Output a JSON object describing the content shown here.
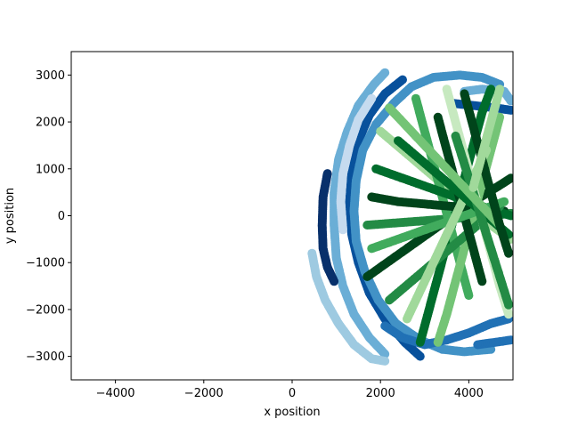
{
  "chart_data": {
    "type": "scatter",
    "title": "",
    "xlabel": "x position",
    "ylabel": "y position",
    "xlim": [
      -5000,
      5000
    ],
    "ylim": [
      -3500,
      3500
    ],
    "xticks": [
      -4000,
      -2000,
      0,
      2000,
      4000
    ],
    "yticks": [
      -3000,
      -2000,
      -1000,
      0,
      1000,
      2000,
      3000
    ],
    "grid": false,
    "legend": "none",
    "marker": "filled circle",
    "colormaps": [
      "Blues",
      "Greens"
    ],
    "series": [
      {
        "colormap": "Blues",
        "tracks": [
          {
            "color": "#6baed6",
            "points": [
              [
                2100,
                3050
              ],
              [
                1850,
                2800
              ],
              [
                1500,
                2350
              ],
              [
                1250,
                1800
              ],
              [
                1050,
                1200
              ],
              [
                950,
                500
              ],
              [
                950,
                -200
              ],
              [
                1000,
                -900
              ],
              [
                1150,
                -1500
              ],
              [
                1400,
                -2100
              ],
              [
                1750,
                -2600
              ],
              [
                2100,
                -2950
              ]
            ]
          },
          {
            "color": "#08519c",
            "points": [
              [
                2500,
                2900
              ],
              [
                2100,
                2600
              ],
              [
                1750,
                2150
              ],
              [
                1500,
                1600
              ],
              [
                1350,
                950
              ],
              [
                1300,
                300
              ],
              [
                1350,
                -400
              ],
              [
                1500,
                -1000
              ],
              [
                1750,
                -1650
              ],
              [
                2100,
                -2200
              ],
              [
                2550,
                -2700
              ],
              [
                2900,
                -3000
              ]
            ]
          },
          {
            "color": "#4292c6",
            "points": [
              [
                4700,
                2800
              ],
              [
                4300,
                2950
              ],
              [
                3800,
                3000
              ],
              [
                3200,
                2950
              ],
              [
                2700,
                2750
              ],
              [
                2300,
                2400
              ],
              [
                1900,
                1950
              ],
              [
                1600,
                1400
              ],
              [
                1450,
                750
              ],
              [
                1400,
                100
              ],
              [
                1450,
                -550
              ],
              [
                1650,
                -1200
              ],
              [
                1950,
                -1800
              ],
              [
                2350,
                -2300
              ],
              [
                2900,
                -2650
              ],
              [
                3400,
                -2850
              ],
              [
                3900,
                -2900
              ],
              [
                4500,
                -2850
              ]
            ]
          },
          {
            "color": "#c6dbef",
            "points": [
              [
                1800,
                2500
              ],
              [
                1500,
                2050
              ],
              [
                1300,
                1500
              ],
              [
                1150,
                900
              ],
              [
                1100,
                300
              ],
              [
                1150,
                -300
              ]
            ]
          },
          {
            "color": "#2171b5",
            "points": [
              [
                4900,
                -2200
              ],
              [
                4500,
                -2300
              ],
              [
                4000,
                -2500
              ],
              [
                3500,
                -2650
              ],
              [
                3000,
                -2750
              ],
              [
                2500,
                -2600
              ],
              [
                2100,
                -2350
              ]
            ]
          },
          {
            "color": "#08306b",
            "points": [
              [
                800,
                900
              ],
              [
                700,
                400
              ],
              [
                680,
                -200
              ],
              [
                700,
                -700
              ],
              [
                800,
                -1100
              ],
              [
                950,
                -1400
              ]
            ]
          },
          {
            "color": "#9ecae1",
            "points": [
              [
                450,
                -800
              ],
              [
                550,
                -1300
              ],
              [
                750,
                -1800
              ],
              [
                1050,
                -2300
              ],
              [
                1400,
                -2750
              ],
              [
                1800,
                -3050
              ],
              [
                2100,
                -3100
              ]
            ]
          },
          {
            "color": "#6baed6",
            "points": [
              [
                3900,
                2650
              ],
              [
                4300,
                2700
              ],
              [
                4800,
                2650
              ],
              [
                4950,
                2450
              ]
            ]
          },
          {
            "color": "#08519c",
            "points": [
              [
                3600,
                2400
              ],
              [
                4100,
                2350
              ],
              [
                4600,
                2300
              ],
              [
                4950,
                2250
              ]
            ]
          },
          {
            "color": "#2171b5",
            "points": [
              [
                4200,
                -2750
              ],
              [
                4600,
                -2700
              ],
              [
                4950,
                -2650
              ]
            ]
          }
        ]
      },
      {
        "colormap": "Greens",
        "tracks": [
          {
            "color": "#00441b",
            "points": [
              [
                1700,
                -1300
              ],
              [
                2300,
                -900
              ],
              [
                2900,
                -500
              ],
              [
                3500,
                -100
              ],
              [
                4100,
                300
              ],
              [
                4700,
                650
              ],
              [
                4950,
                800
              ]
            ]
          },
          {
            "color": "#006d2c",
            "points": [
              [
                2900,
                -2700
              ],
              [
                3100,
                -2000
              ],
              [
                3300,
                -1300
              ],
              [
                3500,
                -600
              ],
              [
                3700,
                100
              ],
              [
                3900,
                800
              ],
              [
                4100,
                1500
              ],
              [
                4300,
                2200
              ],
              [
                4500,
                2700
              ]
            ]
          },
          {
            "color": "#238b45",
            "points": [
              [
                1700,
                -200
              ],
              [
                2400,
                -150
              ],
              [
                3100,
                -100
              ],
              [
                3800,
                -50
              ],
              [
                4500,
                0
              ],
              [
                4950,
                50
              ]
            ]
          },
          {
            "color": "#a1d99b",
            "points": [
              [
                2000,
                1800
              ],
              [
                2500,
                1400
              ],
              [
                3000,
                1000
              ],
              [
                3500,
                600
              ],
              [
                4000,
                200
              ],
              [
                4500,
                -200
              ],
              [
                4950,
                -500
              ]
            ]
          },
          {
            "color": "#41ab5d",
            "points": [
              [
                2800,
                2500
              ],
              [
                3000,
                1800
              ],
              [
                3200,
                1100
              ],
              [
                3400,
                400
              ],
              [
                3600,
                -300
              ],
              [
                3800,
                -1000
              ],
              [
                4000,
                -1700
              ]
            ]
          },
          {
            "color": "#00441b",
            "points": [
              [
                1800,
                400
              ],
              [
                2400,
                300
              ],
              [
                3000,
                250
              ],
              [
                3600,
                200
              ],
              [
                4200,
                150
              ],
              [
                4800,
                100
              ]
            ]
          },
          {
            "color": "#74c476",
            "points": [
              [
                4700,
                2100
              ],
              [
                4500,
                1400
              ],
              [
                4300,
                700
              ],
              [
                4100,
                0
              ],
              [
                3900,
                -700
              ],
              [
                3700,
                -1400
              ],
              [
                3500,
                -2100
              ],
              [
                3300,
                -2700
              ]
            ]
          },
          {
            "color": "#006d2c",
            "points": [
              [
                1900,
                1000
              ],
              [
                2500,
                800
              ],
              [
                3100,
                600
              ],
              [
                3700,
                400
              ],
              [
                4300,
                200
              ],
              [
                4950,
                0
              ]
            ]
          },
          {
            "color": "#238b45",
            "points": [
              [
                2200,
                -1800
              ],
              [
                2700,
                -1400
              ],
              [
                3200,
                -1000
              ],
              [
                3700,
                -600
              ],
              [
                4200,
                -200
              ],
              [
                4700,
                200
              ]
            ]
          },
          {
            "color": "#c7e9c0",
            "points": [
              [
                3500,
                2700
              ],
              [
                3700,
                2000
              ],
              [
                3900,
                1300
              ],
              [
                4100,
                600
              ],
              [
                4300,
                -100
              ],
              [
                4500,
                -800
              ],
              [
                4700,
                -1500
              ],
              [
                4900,
                -2100
              ]
            ]
          },
          {
            "color": "#00441b",
            "points": [
              [
                3300,
                2100
              ],
              [
                3500,
                1400
              ],
              [
                3700,
                700
              ],
              [
                3900,
                0
              ],
              [
                4100,
                -700
              ],
              [
                4300,
                -1400
              ]
            ]
          },
          {
            "color": "#41ab5d",
            "points": [
              [
                1800,
                -700
              ],
              [
                2400,
                -500
              ],
              [
                3000,
                -300
              ],
              [
                3600,
                -100
              ],
              [
                4200,
                100
              ],
              [
                4800,
                300
              ]
            ]
          },
          {
            "color": "#a1d99b",
            "points": [
              [
                2600,
                -2200
              ],
              [
                2900,
                -1600
              ],
              [
                3200,
                -1000
              ],
              [
                3500,
                -400
              ],
              [
                3800,
                200
              ],
              [
                4100,
                800
              ],
              [
                4400,
                1400
              ]
            ]
          },
          {
            "color": "#006d2c",
            "points": [
              [
                2400,
                1600
              ],
              [
                2900,
                1200
              ],
              [
                3400,
                800
              ],
              [
                3900,
                400
              ],
              [
                4400,
                0
              ],
              [
                4900,
                -400
              ]
            ]
          },
          {
            "color": "#238b45",
            "points": [
              [
                4900,
                -1900
              ],
              [
                4700,
                -1300
              ],
              [
                4500,
                -700
              ],
              [
                4300,
                -100
              ],
              [
                4100,
                500
              ],
              [
                3900,
                1100
              ],
              [
                3700,
                1700
              ]
            ]
          },
          {
            "color": "#74c476",
            "points": [
              [
                2200,
                2300
              ],
              [
                2700,
                1800
              ],
              [
                3200,
                1300
              ],
              [
                3700,
                800
              ],
              [
                4200,
                300
              ],
              [
                4700,
                -200
              ]
            ]
          },
          {
            "color": "#00441b",
            "points": [
              [
                3900,
                2600
              ],
              [
                4100,
                1900
              ],
              [
                4300,
                1200
              ],
              [
                4500,
                500
              ],
              [
                4700,
                -200
              ],
              [
                4900,
                -800
              ]
            ]
          },
          {
            "color": "#a1d99b",
            "points": [
              [
                4700,
                2700
              ],
              [
                4500,
                2000
              ],
              [
                4300,
                1300
              ],
              [
                4100,
                600
              ]
            ]
          }
        ]
      }
    ]
  }
}
